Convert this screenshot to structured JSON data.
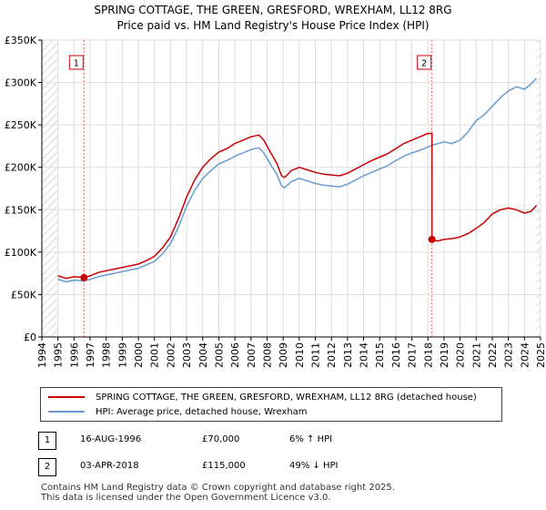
{
  "title_line1": "SPRING COTTAGE, THE GREEN, GRESFORD, WREXHAM, LL12 8RG",
  "title_line2": "Price paid vs. HM Land Registry's House Price Index (HPI)",
  "chart_data": {
    "type": "line",
    "xlim": [
      1994,
      2025
    ],
    "ylim": [
      0,
      350000
    ],
    "y_ticks": [
      0,
      50000,
      100000,
      150000,
      200000,
      250000,
      300000,
      350000
    ],
    "y_tick_labels": [
      "£0",
      "£50K",
      "£100K",
      "£150K",
      "£200K",
      "£250K",
      "£300K",
      "£350K"
    ],
    "x_ticks": [
      1994,
      1995,
      1996,
      1997,
      1998,
      1999,
      2000,
      2001,
      2002,
      2003,
      2004,
      2005,
      2006,
      2007,
      2008,
      2009,
      2010,
      2011,
      2012,
      2013,
      2014,
      2015,
      2016,
      2017,
      2018,
      2019,
      2020,
      2021,
      2022,
      2023,
      2024,
      2025
    ],
    "x_tick_labels": [
      "1994",
      "1995",
      "1996",
      "1997",
      "1998",
      "1999",
      "2000",
      "2001",
      "2002",
      "2003",
      "2004",
      "2005",
      "2006",
      "2007",
      "2008",
      "2009",
      "2010",
      "2011",
      "2012",
      "2013",
      "2014",
      "2015",
      "2016",
      "2017",
      "2018",
      "2019",
      "2020",
      "2021",
      "2022",
      "2023",
      "2024",
      "2025"
    ],
    "grid": true,
    "hatched_ranges": [
      [
        1994,
        1995.0
      ],
      [
        2024.75,
        2025
      ]
    ],
    "series": [
      {
        "name": "SPRING COTTAGE, THE GREEN, GRESFORD, WREXHAM, LL12 8RG (detached house)",
        "color": "#cc0000",
        "x": [
          1995.0,
          1995.5,
          1996.0,
          1996.62,
          1997.0,
          1997.5,
          1998.0,
          1998.5,
          1999.0,
          1999.5,
          2000.0,
          2000.5,
          2001.0,
          2001.5,
          2002.0,
          2002.5,
          2003.0,
          2003.5,
          2004.0,
          2004.5,
          2005.0,
          2005.5,
          2006.0,
          2006.5,
          2007.0,
          2007.5,
          2007.8,
          2008.2,
          2008.6,
          2008.9,
          2009.1,
          2009.5,
          2010.0,
          2010.5,
          2011.0,
          2011.5,
          2012.0,
          2012.5,
          2013.0,
          2013.5,
          2014.0,
          2014.5,
          2015.0,
          2015.5,
          2016.0,
          2016.5,
          2017.0,
          2017.5,
          2018.0,
          2018.25,
          2018.25,
          2018.6,
          2019.0,
          2019.5,
          2020.0,
          2020.5,
          2021.0,
          2021.5,
          2022.0,
          2022.5,
          2023.0,
          2023.5,
          2024.0,
          2024.4,
          2024.75
        ],
        "y": [
          72000,
          69000,
          71000,
          70000,
          72000,
          76000,
          78000,
          80000,
          82000,
          84000,
          86000,
          90000,
          95000,
          105000,
          118000,
          140000,
          165000,
          185000,
          200000,
          210000,
          218000,
          222000,
          228000,
          232000,
          236000,
          238000,
          232000,
          218000,
          205000,
          190000,
          188000,
          196000,
          200000,
          197000,
          194000,
          192000,
          191000,
          190000,
          193000,
          198000,
          203000,
          208000,
          212000,
          216000,
          222000,
          228000,
          232000,
          236000,
          240000,
          240000,
          115000,
          113000,
          115000,
          116000,
          118000,
          122000,
          128000,
          135000,
          145000,
          150000,
          152000,
          150000,
          146000,
          148000,
          155000
        ]
      },
      {
        "name": "HPI: Average price, detached house, Wrexham",
        "color": "#6a9bd1",
        "x": [
          1995.0,
          1995.5,
          1996.0,
          1996.62,
          1997.0,
          1997.5,
          1998.0,
          1998.5,
          1999.0,
          1999.5,
          2000.0,
          2000.5,
          2001.0,
          2001.5,
          2002.0,
          2002.5,
          2003.0,
          2003.5,
          2004.0,
          2004.5,
          2005.0,
          2005.5,
          2006.0,
          2006.5,
          2007.0,
          2007.5,
          2007.8,
          2008.2,
          2008.6,
          2008.9,
          2009.1,
          2009.5,
          2010.0,
          2010.5,
          2011.0,
          2011.5,
          2012.0,
          2012.5,
          2013.0,
          2013.5,
          2014.0,
          2014.5,
          2015.0,
          2015.5,
          2016.0,
          2016.5,
          2017.0,
          2017.5,
          2018.0,
          2018.25,
          2018.6,
          2019.0,
          2019.5,
          2020.0,
          2020.5,
          2021.0,
          2021.5,
          2022.0,
          2022.5,
          2023.0,
          2023.5,
          2024.0,
          2024.4,
          2024.75
        ],
        "y": [
          68000,
          65000,
          67000,
          66000,
          68000,
          71000,
          73000,
          75000,
          77000,
          79000,
          81000,
          85000,
          89000,
          98000,
          110000,
          130000,
          154000,
          173000,
          187000,
          196000,
          204000,
          208000,
          213000,
          217000,
          221000,
          223000,
          217000,
          204000,
          192000,
          178000,
          176000,
          183000,
          187000,
          184000,
          181000,
          179000,
          178000,
          177000,
          180000,
          185000,
          190000,
          194000,
          198000,
          202000,
          208000,
          213000,
          217000,
          220000,
          224000,
          226000,
          228000,
          230000,
          228000,
          232000,
          242000,
          255000,
          262000,
          272000,
          282000,
          290000,
          295000,
          292000,
          298000,
          305000
        ]
      }
    ],
    "markers": [
      {
        "label": "1",
        "x": 1996.62,
        "y": 70000
      },
      {
        "label": "2",
        "x": 2018.25,
        "y": 115000
      }
    ]
  },
  "legend": {
    "property_label": "SPRING COTTAGE, THE GREEN, GRESFORD, WREXHAM, LL12 8RG (detached house)",
    "hpi_label": "HPI: Average price, detached house, Wrexham",
    "property_color": "#cc0000",
    "hpi_color": "#6a9bd1"
  },
  "transactions": [
    {
      "num": "1",
      "date": "16-AUG-1996",
      "price": "£70,000",
      "hpi": "6% ↑ HPI"
    },
    {
      "num": "2",
      "date": "03-APR-2018",
      "price": "£115,000",
      "hpi": "49% ↓ HPI"
    }
  ],
  "footer": {
    "line1": "Contains HM Land Registry data © Crown copyright and database right 2025.",
    "line2": "This data is licensed under the Open Government Licence v3.0."
  }
}
